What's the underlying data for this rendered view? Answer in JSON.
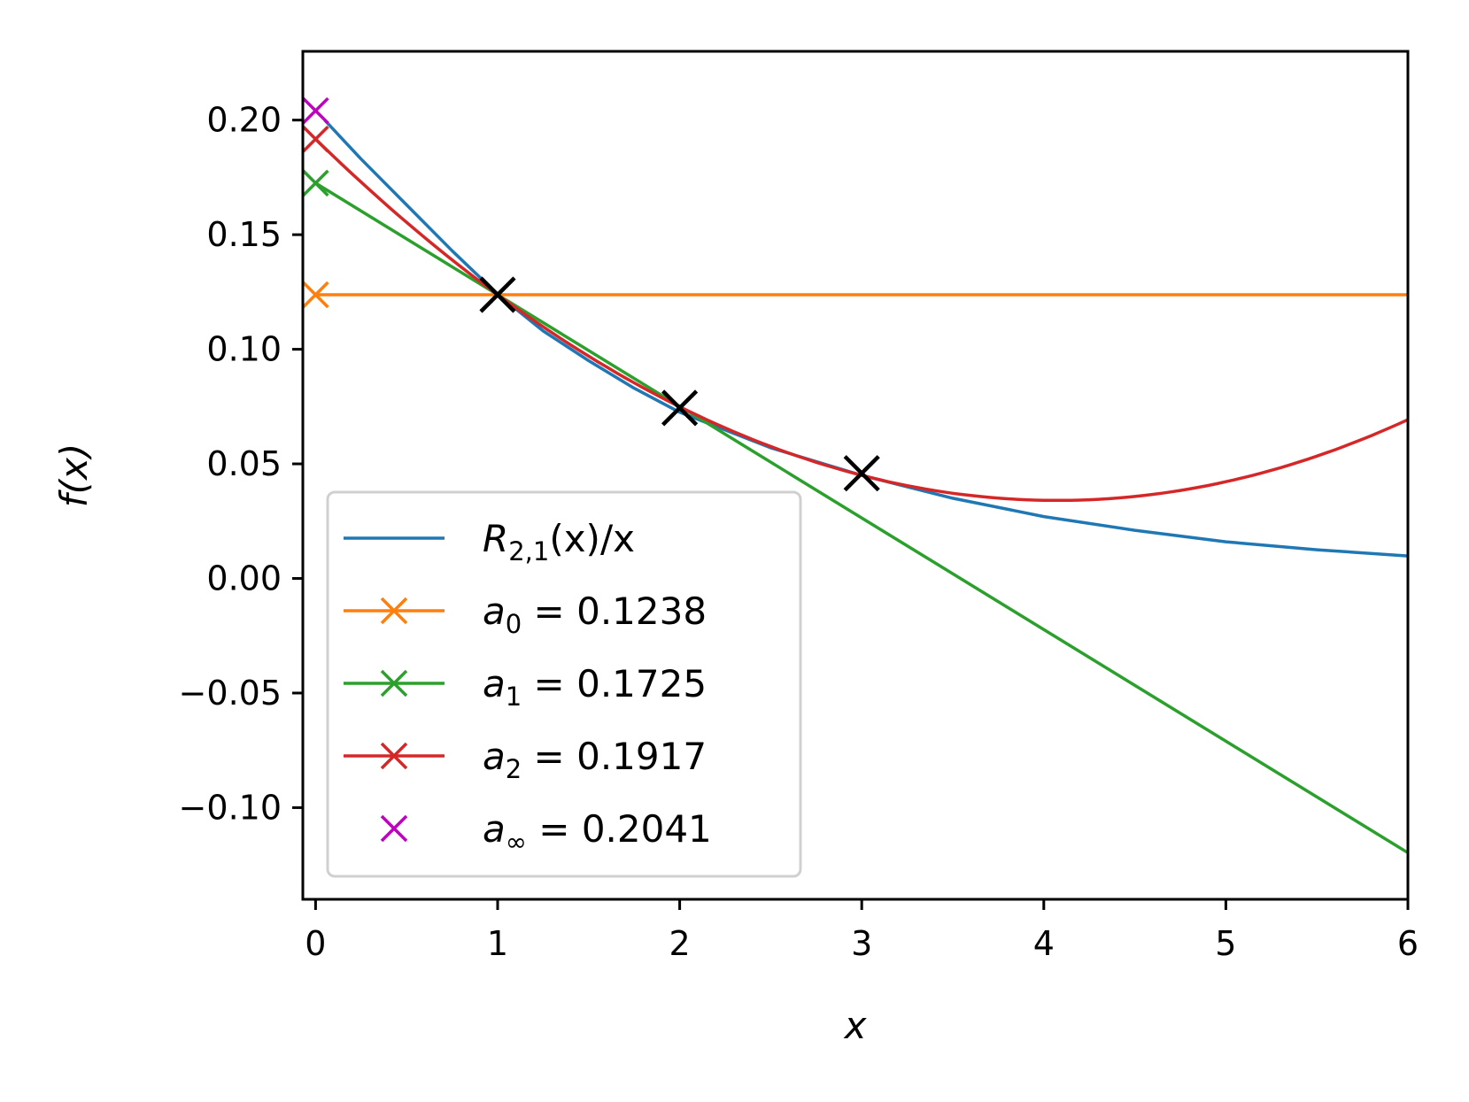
{
  "chart_data": {
    "type": "line",
    "xlabel": "x",
    "ylabel": "f(x)",
    "xlim": [
      -0.07,
      6
    ],
    "ylim": [
      -0.14,
      0.23
    ],
    "xticks": [
      0,
      1,
      2,
      3,
      4,
      5,
      6
    ],
    "xtick_labels": [
      "0",
      "1",
      "2",
      "3",
      "4",
      "5",
      "6"
    ],
    "yticks": [
      0.2,
      0.15,
      0.1,
      0.05,
      0.0,
      -0.05,
      -0.1
    ],
    "ytick_labels": [
      "0.20",
      "0.15",
      "0.10",
      "0.05",
      "0.00",
      "−0.05",
      "−0.10"
    ],
    "grid": false,
    "legend_position": "lower-left",
    "series": [
      {
        "name": "R_{2,1}(x)/x",
        "legend_label": "R2,1(x)/x",
        "color": "#1f77b4",
        "marker": "none",
        "x": [
          0.05,
          0.25,
          0.5,
          0.75,
          1.0,
          1.25,
          1.5,
          1.75,
          2.0,
          2.5,
          3.0,
          3.5,
          4.0,
          4.5,
          5.0,
          5.5,
          6.0
        ],
        "y": [
          0.2,
          0.183,
          0.163,
          0.143,
          0.124,
          0.108,
          0.095,
          0.083,
          0.0725,
          0.057,
          0.045,
          0.035,
          0.027,
          0.021,
          0.016,
          0.0125,
          0.0098
        ]
      },
      {
        "name": "a_0 = 0.1238",
        "legend_label": "a0 = 0.1238",
        "color": "#ff7f0e",
        "marker": "x",
        "x": [
          0,
          6
        ],
        "y": [
          0.1238,
          0.1238
        ],
        "marker_point": [
          0,
          0.1238
        ]
      },
      {
        "name": "a_1 = 0.1725",
        "legend_label": "a1 = 0.1725",
        "color": "#2ca02c",
        "marker": "x",
        "x": [
          0,
          6
        ],
        "y": [
          0.1725,
          -0.1197
        ],
        "marker_point": [
          0,
          0.1725
        ]
      },
      {
        "name": "a_2 = 0.1917",
        "legend_label": "a2 = 0.1917",
        "color": "#d62728",
        "marker": "x",
        "polynomial": [
          0.1917,
          -0.0774,
          0.0095
        ],
        "marker_point": [
          0,
          0.1917
        ]
      },
      {
        "name": "a_∞ = 0.2041",
        "legend_label": "a∞ = 0.2041",
        "color": "#bf00bf",
        "marker": "x",
        "points": [
          [
            0,
            0.2041
          ]
        ]
      }
    ],
    "sample_points": {
      "color": "#000000",
      "marker": "x",
      "x": [
        1,
        2,
        3
      ],
      "y": [
        0.1238,
        0.0744,
        0.0459
      ]
    }
  }
}
